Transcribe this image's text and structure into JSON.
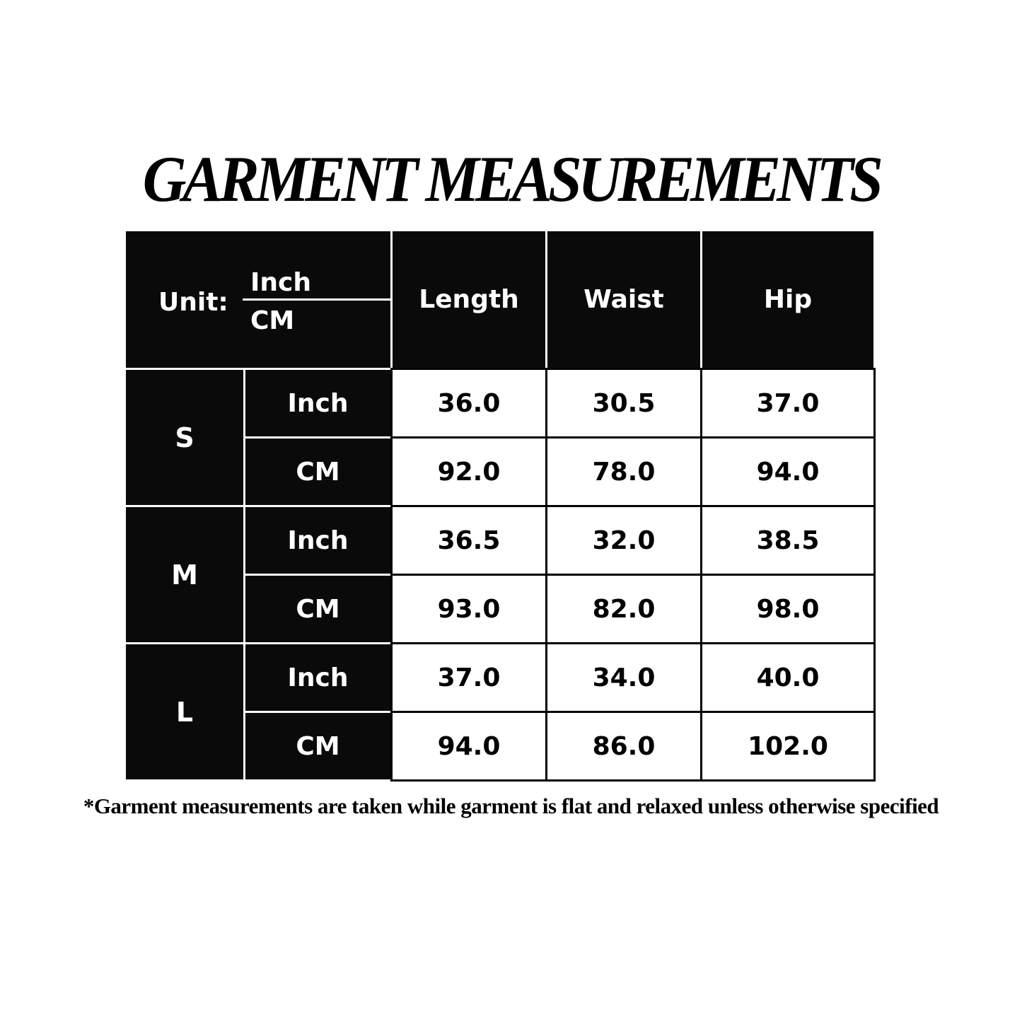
{
  "title": "GARMENT MEASUREMENTS",
  "table": {
    "unit_label": "Unit:",
    "unit_top": "Inch",
    "unit_bottom": "CM",
    "headers": [
      "Length",
      "Waist",
      "Hip"
    ],
    "sizes": [
      {
        "size": "S",
        "rows": [
          {
            "unit": "Inch",
            "values": [
              "36.0",
              "30.5",
              "37.0"
            ]
          },
          {
            "unit": "CM",
            "values": [
              "92.0",
              "78.0",
              "94.0"
            ]
          }
        ]
      },
      {
        "size": "M",
        "rows": [
          {
            "unit": "Inch",
            "values": [
              "36.5",
              "32.0",
              "38.5"
            ]
          },
          {
            "unit": "CM",
            "values": [
              "93.0",
              "82.0",
              "98.0"
            ]
          }
        ]
      },
      {
        "size": "L",
        "rows": [
          {
            "unit": "Inch",
            "values": [
              "37.0",
              "34.0",
              "40.0"
            ]
          },
          {
            "unit": "CM",
            "values": [
              "94.0",
              "86.0",
              "102.0"
            ]
          }
        ]
      }
    ]
  },
  "footnote": "*Garment measurements are taken while garment is flat and relaxed unless otherwise specified"
}
